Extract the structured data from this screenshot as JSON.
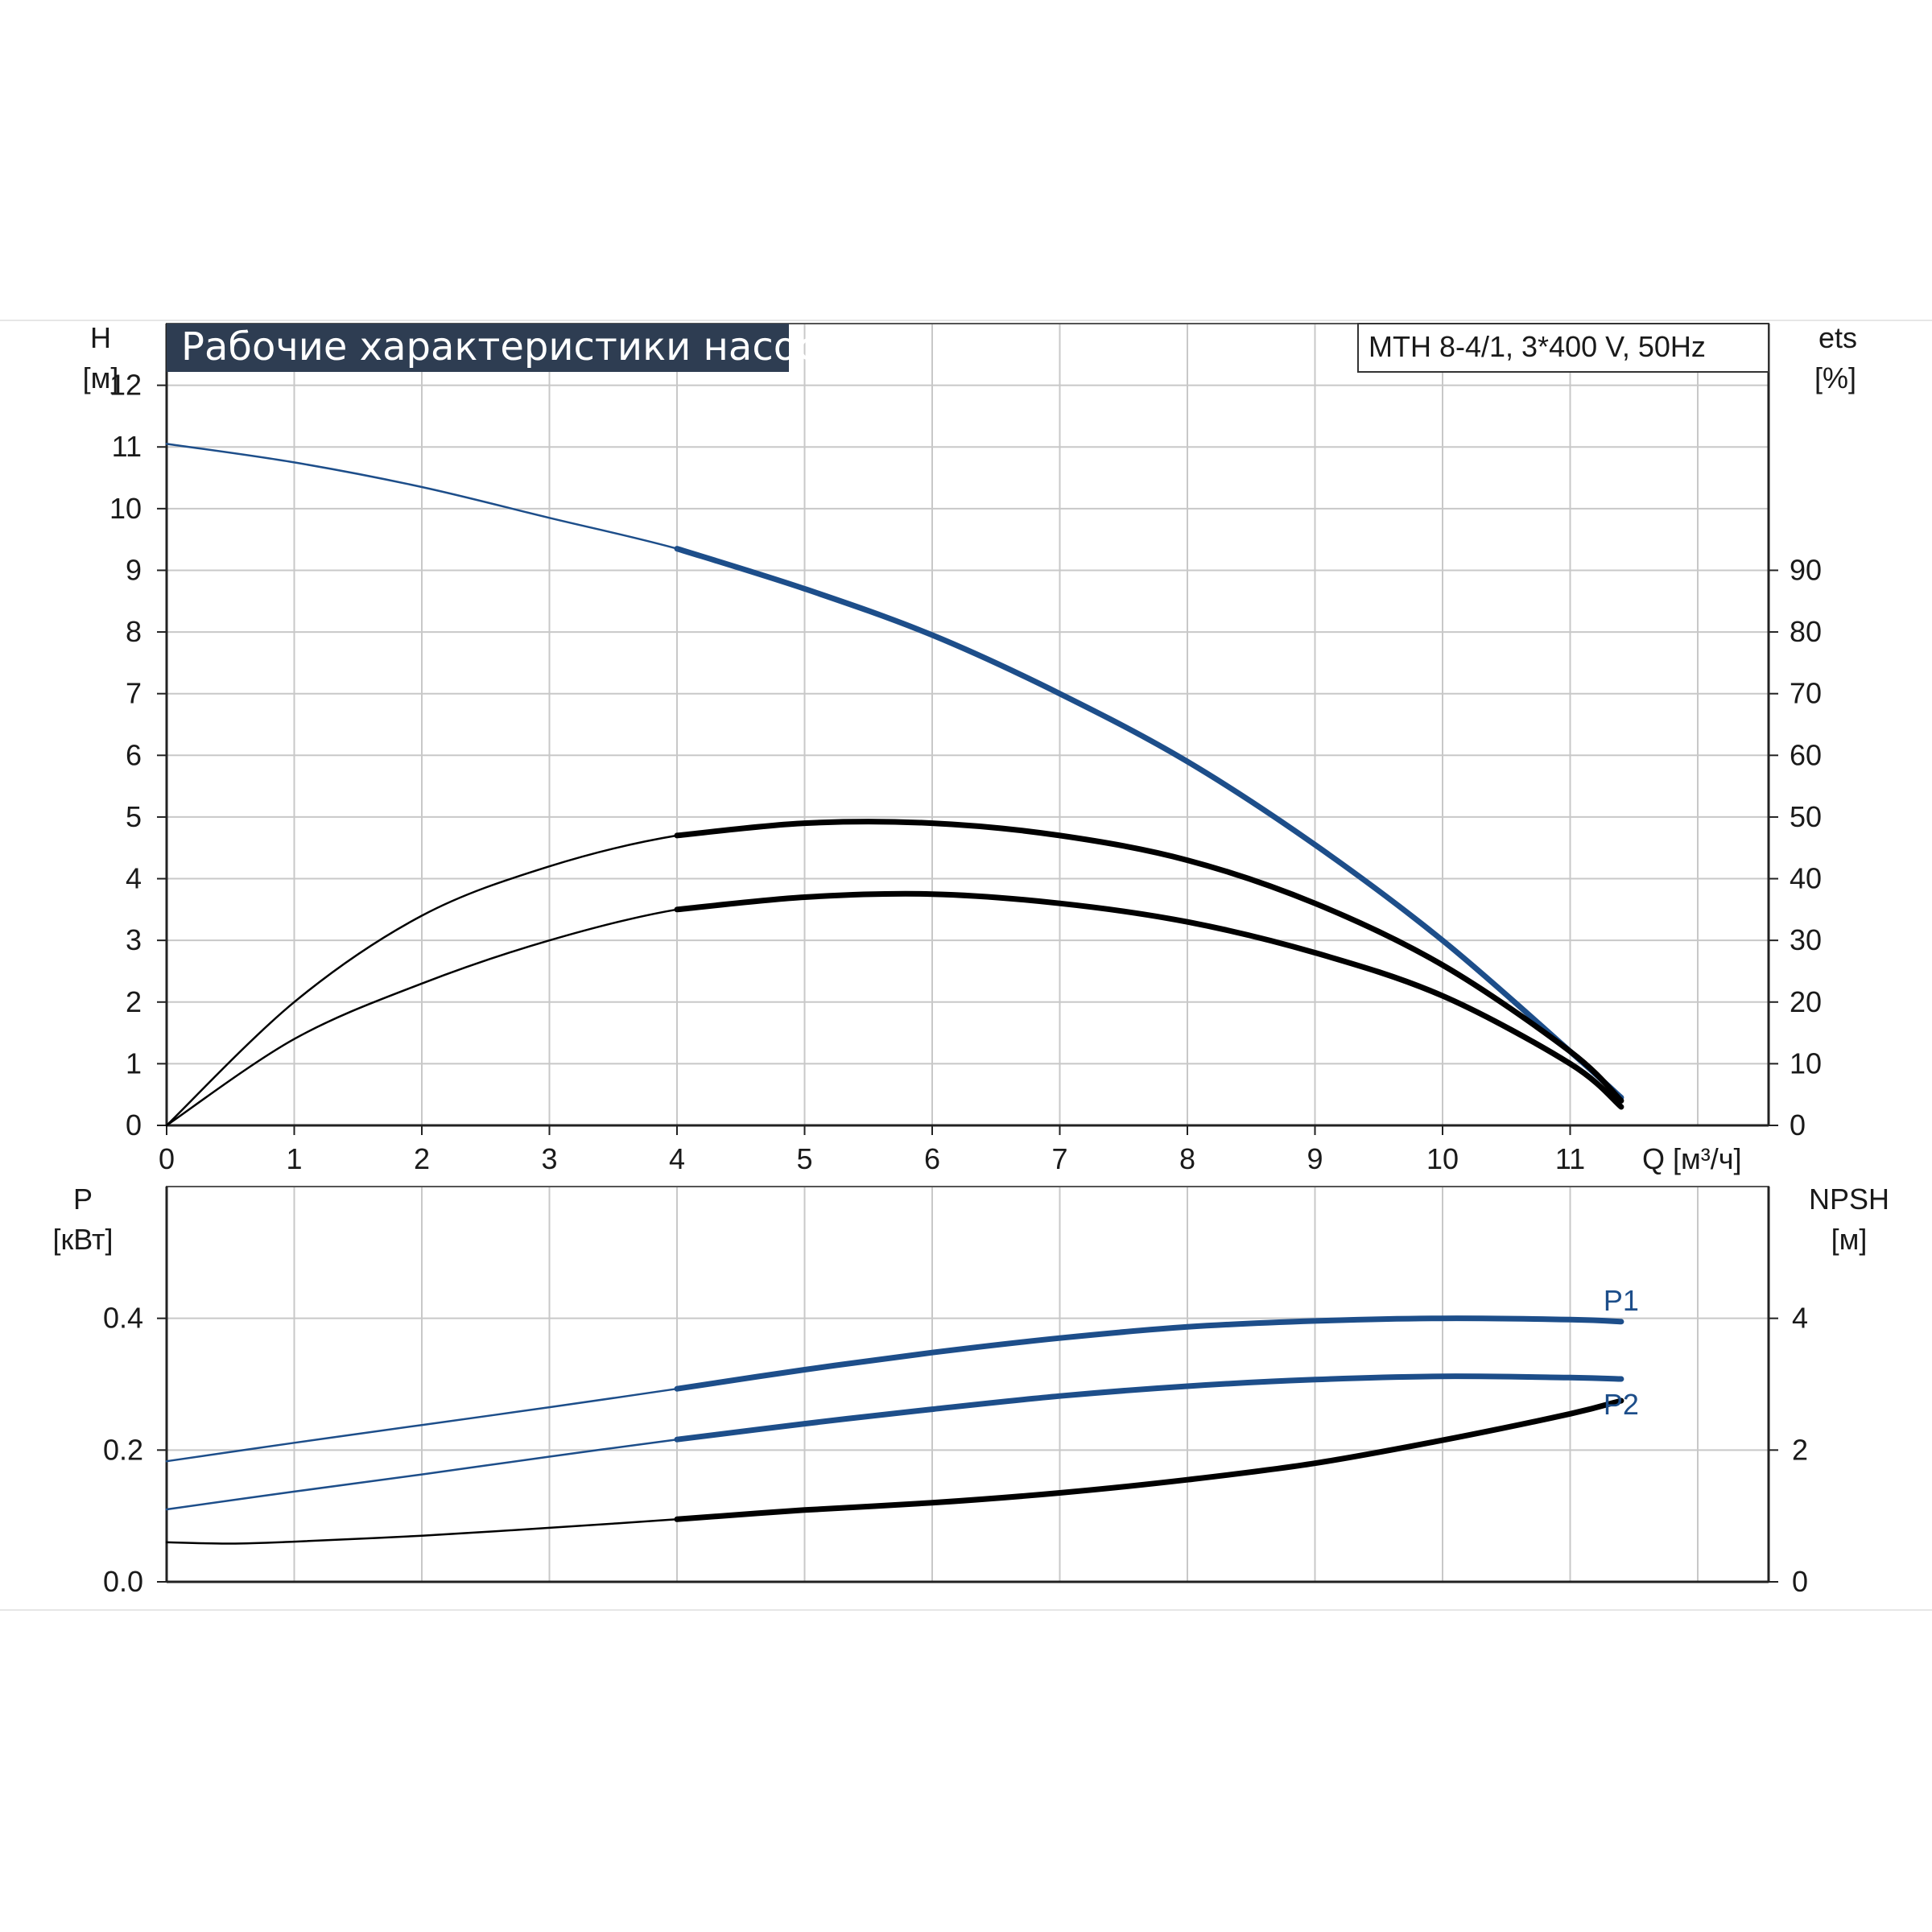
{
  "title": "Рабочие характеристики насоса",
  "model": "MTH 8-4/1, 3*400 V, 50Hz",
  "colors": {
    "blue": "#1d4e8a",
    "black": "#000000",
    "grid": "#c8c8c8",
    "title_bg": "#2e3d52"
  },
  "chart_data": [
    {
      "type": "line",
      "name": "upper",
      "x_label": "Q [м³/ч]",
      "y_label": {
        "name": "H",
        "unit": "[м]"
      },
      "y2_label": {
        "name": "ets",
        "unit": "[%]"
      },
      "xlim": [
        0,
        12.5
      ],
      "ylim": [
        0,
        13
      ],
      "y2lim": [
        0,
        130
      ],
      "x_ticks": [
        0,
        1,
        2,
        3,
        4,
        5,
        6,
        7,
        8,
        9,
        10,
        11
      ],
      "y_ticks": [
        0,
        1,
        2,
        3,
        4,
        5,
        6,
        7,
        8,
        9,
        10,
        11,
        12
      ],
      "y2_ticks": [
        0,
        10,
        20,
        30,
        40,
        50,
        60,
        70,
        80,
        90
      ],
      "grid": true,
      "series": [
        {
          "axis": "y",
          "color": "#1d4e8a",
          "x": [
            0,
            1,
            2,
            3,
            4,
            5,
            6,
            7,
            8,
            9,
            10,
            11,
            11.4
          ],
          "y": [
            11.05,
            10.75,
            10.35,
            9.85,
            9.35,
            8.7,
            7.95,
            7.0,
            5.9,
            4.55,
            3.0,
            1.2,
            0.45
          ]
        },
        {
          "axis": "y2",
          "color": "#000000",
          "x": [
            0,
            1,
            2,
            3,
            4,
            5,
            6,
            7,
            8,
            9,
            10,
            11,
            11.4
          ],
          "y": [
            0,
            20,
            34,
            42,
            47,
            49,
            49,
            47,
            43,
            36,
            26,
            12,
            4
          ]
        },
        {
          "axis": "y2",
          "color": "#000000",
          "x": [
            0,
            1,
            2,
            3,
            4,
            5,
            6,
            7,
            8,
            9,
            10,
            11,
            11.4
          ],
          "y": [
            0,
            14,
            23,
            30,
            35,
            37,
            37.5,
            36,
            33,
            28,
            21,
            10,
            3
          ]
        }
      ]
    },
    {
      "type": "line",
      "name": "lower",
      "y_label": {
        "name": "P",
        "unit": "[кВт]"
      },
      "y2_label": {
        "name": "NPSH",
        "unit": "[м]"
      },
      "xlim": [
        0,
        12.5
      ],
      "ylim": [
        0,
        0.6
      ],
      "y2lim": [
        0,
        6
      ],
      "y_ticks": [
        "0.0",
        "0.2",
        "0.4"
      ],
      "y2_ticks": [
        0,
        2,
        4
      ],
      "grid": true,
      "series": [
        {
          "name": "P1",
          "axis": "y",
          "color": "#1d4e8a",
          "x": [
            0,
            1,
            2,
            3,
            4,
            5,
            6,
            7,
            8,
            9,
            10,
            11,
            11.4
          ],
          "y": [
            0.183,
            0.211,
            0.238,
            0.265,
            0.293,
            0.322,
            0.348,
            0.37,
            0.387,
            0.396,
            0.4,
            0.398,
            0.395
          ]
        },
        {
          "name": "P2",
          "axis": "y",
          "color": "#1d4e8a",
          "x": [
            0,
            1,
            2,
            3,
            4,
            5,
            6,
            7,
            8,
            9,
            10,
            11,
            11.4
          ],
          "y": [
            0.11,
            0.137,
            0.163,
            0.19,
            0.216,
            0.24,
            0.262,
            0.282,
            0.297,
            0.307,
            0.312,
            0.31,
            0.308
          ]
        },
        {
          "axis": "y2",
          "color": "#000000",
          "x": [
            0,
            0.5,
            1,
            2,
            3,
            4,
            5,
            6,
            7,
            8,
            9,
            10,
            11,
            11.4
          ],
          "y": [
            0.6,
            0.58,
            0.61,
            0.7,
            0.82,
            0.95,
            1.09,
            1.2,
            1.35,
            1.55,
            1.8,
            2.15,
            2.55,
            2.75
          ]
        }
      ]
    }
  ]
}
